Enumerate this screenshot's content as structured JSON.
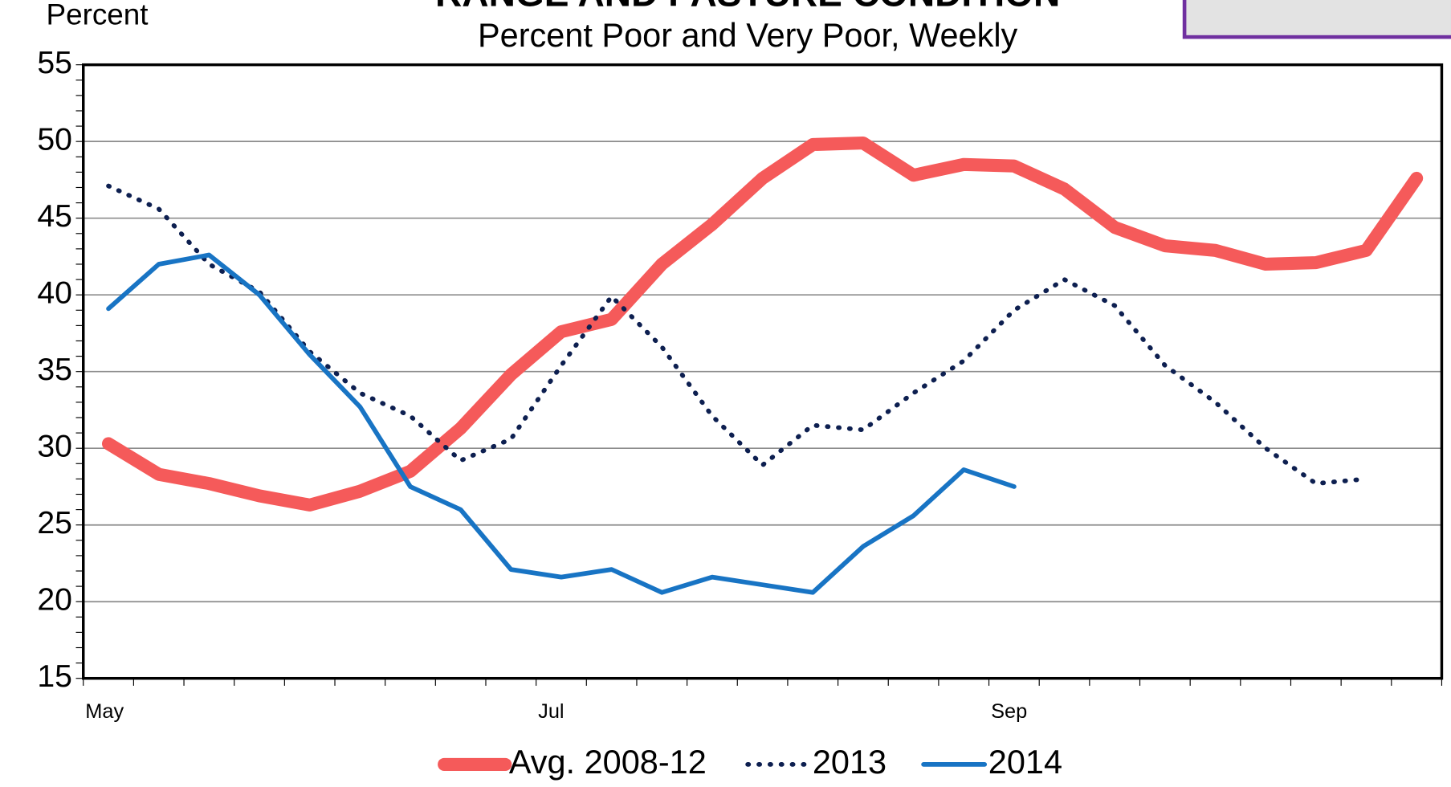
{
  "chart_data": {
    "type": "line",
    "title": "RANGE AND PASTURE CONDITION",
    "subtitle": "Percent Poor and Very Poor, Weekly",
    "y_label": "Percent",
    "categories": [
      "May",
      null,
      null,
      null,
      null,
      null,
      null,
      null,
      null,
      "Jul",
      null,
      null,
      null,
      null,
      null,
      null,
      null,
      null,
      "Sep",
      null,
      null,
      null,
      null,
      null,
      null,
      null,
      null
    ],
    "series": [
      {
        "name": "Avg. 2008-12",
        "color": "#f55a5a",
        "width": 14,
        "dash": null,
        "values": [
          30.3,
          28.3,
          27.7,
          26.9,
          26.3,
          27.2,
          28.5,
          31.3,
          34.8,
          37.6,
          38.4,
          42,
          44.6,
          47.6,
          49.8,
          49.9,
          47.8,
          48.5,
          48.4,
          46.9,
          44.4,
          43.2,
          42.9,
          42,
          42.1,
          42.9,
          47.6
        ]
      },
      {
        "name": "2013",
        "color": "#0d1f50",
        "width": 5,
        "dash": "1 11",
        "values": [
          47.1,
          45.6,
          42,
          40.2,
          36.3,
          33.6,
          32.1,
          29.2,
          30.6,
          35.4,
          39.9,
          36.6,
          32.1,
          28.9,
          31.5,
          31.2,
          33.6,
          35.7,
          39,
          41,
          39.3,
          35.4,
          33,
          30,
          27.7,
          28,
          null
        ]
      },
      {
        "name": "2014",
        "color": "#1874c4",
        "width": 5,
        "dash": null,
        "values": [
          39.1,
          42,
          42.6,
          40,
          36.1,
          32.7,
          27.5,
          26,
          22.1,
          21.6,
          22.1,
          20.6,
          21.6,
          21.1,
          20.6,
          23.6,
          25.6,
          28.6,
          27.5,
          null,
          null,
          null,
          null,
          null,
          null,
          null,
          null
        ]
      }
    ],
    "ylim": [
      15,
      55
    ],
    "yticks": [
      15,
      20,
      25,
      30,
      35,
      40,
      45,
      50,
      55
    ],
    "grid": true,
    "legend": "bottom"
  }
}
